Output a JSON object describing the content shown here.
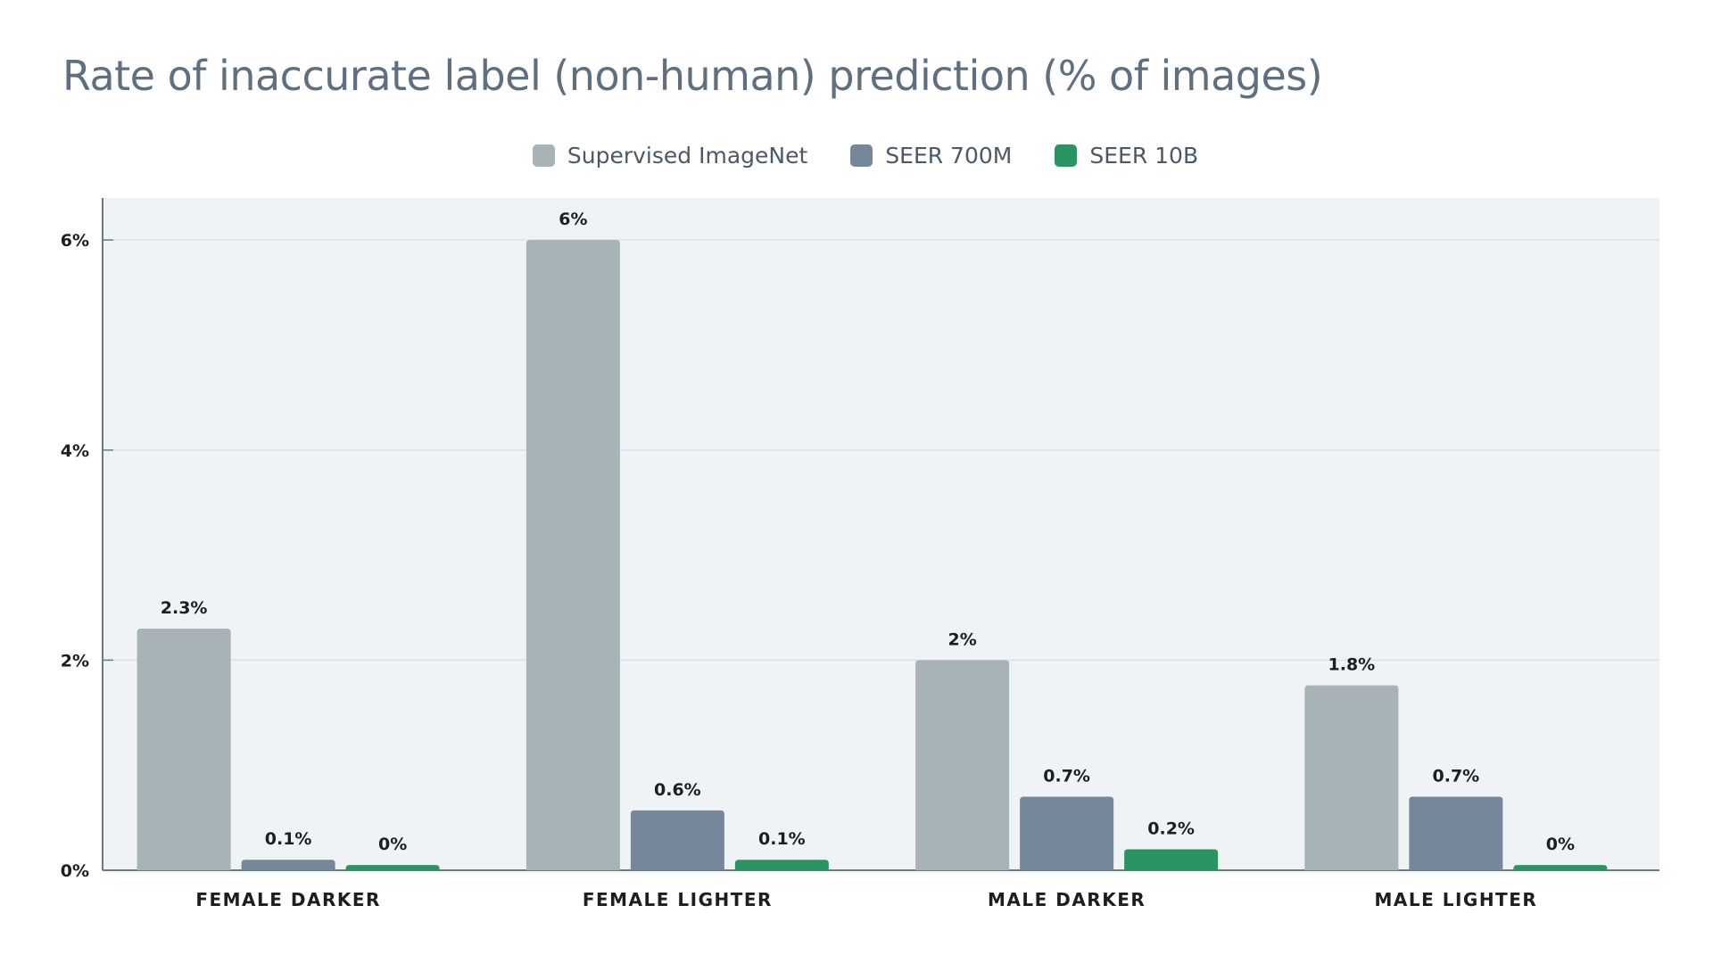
{
  "chart_data": {
    "type": "bar",
    "title": "Rate of inaccurate label (non-human) prediction (% of images)",
    "categories": [
      "FEMALE DARKER",
      "FEMALE LIGHTER",
      "MALE DARKER",
      "MALE LIGHTER"
    ],
    "series": [
      {
        "name": "Supervised ImageNet",
        "color": "#a7b3b7",
        "values": [
          2.3,
          6.0,
          2.0,
          1.76
        ],
        "labels": [
          "2.3%",
          "6%",
          "2%",
          "1.8%"
        ]
      },
      {
        "name": "SEER 700M",
        "color": "#768799",
        "values": [
          0.1,
          0.57,
          0.7,
          0.7
        ],
        "labels": [
          "0.1%",
          "0.6%",
          "0.7%",
          "0.7%"
        ]
      },
      {
        "name": "SEER 10B",
        "color": "#2a9462",
        "values": [
          0.05,
          0.1,
          0.2,
          0.05
        ],
        "labels": [
          "0%",
          "0.1%",
          "0.2%",
          "0%"
        ]
      }
    ],
    "yticks": [
      0,
      2,
      4,
      6
    ],
    "ytick_labels": [
      "0%",
      "2%",
      "4%",
      "6%"
    ],
    "ylim": [
      0,
      6.4
    ],
    "grid": true,
    "legend": "top-center",
    "plot_background": "#eff3f6"
  }
}
